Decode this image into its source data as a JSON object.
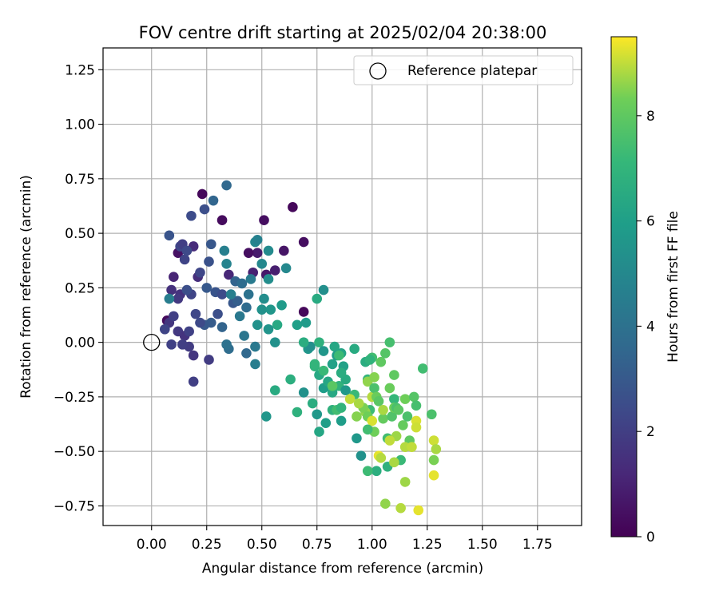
{
  "chart_data": {
    "type": "scatter",
    "title": "FOV centre drift starting at 2025/02/04 20:38:00",
    "xlabel": "Angular distance from reference (arcmin)",
    "ylabel": "Rotation from reference (arcmin)",
    "xlim": [
      -0.22,
      1.95
    ],
    "ylim": [
      -0.84,
      1.35
    ],
    "x_ticks": [
      0.0,
      0.25,
      0.5,
      0.75,
      1.0,
      1.25,
      1.5,
      1.75
    ],
    "x_tick_labels": [
      "0.00",
      "0.25",
      "0.50",
      "0.75",
      "1.00",
      "1.25",
      "1.50",
      "1.75"
    ],
    "y_ticks": [
      -0.75,
      -0.5,
      -0.25,
      0.0,
      0.25,
      0.5,
      0.75,
      1.0,
      1.25
    ],
    "y_tick_labels": [
      "−0.75",
      "−0.50",
      "−0.25",
      "0.00",
      "0.25",
      "0.50",
      "0.75",
      "1.00",
      "1.25"
    ],
    "grid": true,
    "legend": {
      "placement": "top-right",
      "entries": [
        "Reference platepar"
      ]
    },
    "reference_point": {
      "x": 0.0,
      "y": 0.0
    },
    "colorbar": {
      "label": "Hours from first FF file",
      "colormap": "viridis",
      "range": [
        0,
        9.5
      ],
      "ticks": [
        0,
        2,
        4,
        6,
        8
      ],
      "tick_labels": [
        "0",
        "2",
        "4",
        "6",
        "8"
      ]
    },
    "points": [
      [
        0.07,
        0.1,
        0.3
      ],
      [
        0.12,
        0.41,
        0.5
      ],
      [
        0.23,
        0.68,
        0.2
      ],
      [
        0.32,
        0.56,
        0.3
      ],
      [
        0.51,
        0.56,
        0.4
      ],
      [
        0.64,
        0.62,
        0.2
      ],
      [
        0.69,
        0.46,
        0.4
      ],
      [
        0.6,
        0.42,
        0.6
      ],
      [
        0.48,
        0.41,
        0.8
      ],
      [
        0.44,
        0.41,
        0.4
      ],
      [
        0.56,
        0.33,
        0.9
      ],
      [
        0.52,
        0.31,
        0.7
      ],
      [
        0.46,
        0.32,
        1.0
      ],
      [
        0.35,
        0.31,
        1.2
      ],
      [
        0.19,
        0.44,
        1.3
      ],
      [
        0.21,
        0.3,
        1.4
      ],
      [
        0.69,
        0.14,
        0.2
      ],
      [
        0.09,
        0.24,
        1.5
      ],
      [
        0.1,
        0.3,
        1.1
      ],
      [
        0.13,
        0.22,
        1.6
      ],
      [
        0.08,
        0.09,
        1.7
      ],
      [
        0.12,
        0.05,
        1.8
      ],
      [
        0.15,
        0.03,
        1.6
      ],
      [
        0.17,
        -0.02,
        1.9
      ],
      [
        0.14,
        -0.01,
        2.0
      ],
      [
        0.19,
        -0.06,
        1.7
      ],
      [
        0.09,
        -0.01,
        2.1
      ],
      [
        0.19,
        -0.18,
        2.0
      ],
      [
        0.26,
        -0.08,
        1.9
      ],
      [
        0.12,
        0.2,
        1.8
      ],
      [
        0.1,
        0.12,
        2.0
      ],
      [
        0.06,
        0.06,
        2.2
      ],
      [
        0.15,
        0.38,
        2.2
      ],
      [
        0.13,
        0.44,
        2.3
      ],
      [
        0.14,
        0.45,
        2.0
      ],
      [
        0.16,
        0.42,
        2.4
      ],
      [
        0.08,
        0.49,
        2.8
      ],
      [
        0.18,
        0.58,
        2.5
      ],
      [
        0.24,
        0.61,
        2.6
      ],
      [
        0.28,
        0.65,
        3.5
      ],
      [
        0.34,
        0.72,
        3.6
      ],
      [
        0.26,
        0.37,
        2.7
      ],
      [
        0.27,
        0.45,
        2.9
      ],
      [
        0.22,
        0.32,
        2.3
      ],
      [
        0.25,
        0.25,
        3.0
      ],
      [
        0.29,
        0.23,
        2.8
      ],
      [
        0.32,
        0.22,
        2.5
      ],
      [
        0.37,
        0.18,
        2.9
      ],
      [
        0.39,
        0.19,
        3.2
      ],
      [
        0.3,
        0.13,
        2.6
      ],
      [
        0.27,
        0.09,
        3.1
      ],
      [
        0.32,
        0.07,
        3.4
      ],
      [
        0.24,
        0.08,
        3.0
      ],
      [
        0.22,
        0.09,
        2.4
      ],
      [
        0.17,
        0.05,
        2.1
      ],
      [
        0.2,
        0.13,
        2.3
      ],
      [
        0.18,
        0.22,
        2.2
      ],
      [
        0.16,
        0.24,
        2.6
      ],
      [
        0.08,
        0.2,
        4.5
      ],
      [
        0.33,
        0.42,
        4.6
      ],
      [
        0.34,
        0.36,
        4.8
      ],
      [
        0.38,
        0.28,
        3.4
      ],
      [
        0.41,
        0.27,
        3.8
      ],
      [
        0.44,
        0.22,
        4.0
      ],
      [
        0.45,
        0.29,
        4.4
      ],
      [
        0.47,
        0.46,
        4.9
      ],
      [
        0.48,
        0.47,
        4.7
      ],
      [
        0.5,
        0.36,
        5.0
      ],
      [
        0.53,
        0.29,
        5.2
      ],
      [
        0.51,
        0.2,
        5.2
      ],
      [
        0.5,
        0.15,
        5.4
      ],
      [
        0.54,
        0.15,
        5.6
      ],
      [
        0.48,
        0.08,
        5.4
      ],
      [
        0.53,
        0.06,
        5.5
      ],
      [
        0.56,
        0.0,
        5.4
      ],
      [
        0.47,
        -0.02,
        4.3
      ],
      [
        0.43,
        -0.05,
        3.6
      ],
      [
        0.47,
        -0.1,
        4.5
      ],
      [
        0.42,
        0.03,
        4.2
      ],
      [
        0.35,
        -0.03,
        3.8
      ],
      [
        0.34,
        -0.01,
        4.0
      ],
      [
        0.36,
        0.22,
        4.6
      ],
      [
        0.4,
        0.12,
        4.3
      ],
      [
        0.43,
        0.16,
        3.7
      ],
      [
        0.61,
        0.34,
        5.0
      ],
      [
        0.53,
        0.42,
        5.1
      ],
      [
        0.59,
        0.17,
        5.8
      ],
      [
        0.57,
        0.08,
        6.4
      ],
      [
        0.66,
        0.08,
        6.0
      ],
      [
        0.7,
        0.09,
        5.8
      ],
      [
        0.75,
        0.2,
        6.5
      ],
      [
        0.78,
        0.24,
        5.3
      ],
      [
        0.69,
        -0.23,
        5.4
      ],
      [
        0.71,
        -0.03,
        5.6
      ],
      [
        0.72,
        -0.02,
        5.3
      ],
      [
        0.76,
        0.0,
        6.8
      ],
      [
        0.78,
        -0.04,
        5.6
      ],
      [
        0.83,
        -0.02,
        6.3
      ],
      [
        0.84,
        -0.06,
        5.9
      ],
      [
        0.86,
        -0.05,
        6.2
      ],
      [
        0.82,
        -0.1,
        6.1
      ],
      [
        0.74,
        -0.11,
        6.9
      ],
      [
        0.76,
        -0.15,
        6.4
      ],
      [
        0.78,
        -0.21,
        5.9
      ],
      [
        0.8,
        -0.18,
        6.3
      ],
      [
        0.82,
        -0.23,
        6.4
      ],
      [
        0.85,
        -0.2,
        6.9
      ],
      [
        0.88,
        -0.17,
        6.5
      ],
      [
        0.87,
        -0.11,
        6.1
      ],
      [
        0.88,
        -0.22,
        5.7
      ],
      [
        0.73,
        -0.28,
        6.6
      ],
      [
        0.75,
        -0.33,
        5.7
      ],
      [
        0.76,
        -0.41,
        6.3
      ],
      [
        0.79,
        -0.37,
        6.0
      ],
      [
        0.82,
        -0.31,
        6.8
      ],
      [
        0.84,
        -0.31,
        7.4
      ],
      [
        0.86,
        -0.3,
        7.0
      ],
      [
        0.86,
        -0.36,
        5.9
      ],
      [
        0.92,
        -0.03,
        6.5
      ],
      [
        0.92,
        -0.24,
        7.2
      ],
      [
        0.93,
        -0.44,
        5.7
      ],
      [
        0.95,
        -0.52,
        5.4
      ],
      [
        0.97,
        -0.09,
        6.6
      ],
      [
        0.98,
        -0.17,
        7.0
      ],
      [
        0.98,
        -0.18,
        8.6
      ],
      [
        0.99,
        -0.31,
        7.3
      ],
      [
        1.0,
        -0.07,
        7.4
      ],
      [
        1.0,
        -0.25,
        8.9
      ],
      [
        1.01,
        -0.21,
        7.6
      ],
      [
        1.02,
        -0.25,
        8.2
      ],
      [
        1.04,
        -0.09,
        8.0
      ],
      [
        1.06,
        -0.05,
        7.8
      ],
      [
        1.08,
        0.0,
        7.5
      ],
      [
        1.03,
        -0.27,
        7.9
      ],
      [
        1.05,
        -0.35,
        8.1
      ],
      [
        1.07,
        -0.44,
        7.4
      ],
      [
        1.09,
        -0.34,
        7.7
      ],
      [
        1.1,
        -0.26,
        7.1
      ],
      [
        1.1,
        -0.3,
        8.3
      ],
      [
        1.11,
        -0.3,
        7.6
      ],
      [
        1.12,
        -0.31,
        7.9
      ],
      [
        1.15,
        -0.26,
        8.3
      ],
      [
        1.14,
        -0.38,
        8.1
      ],
      [
        1.16,
        -0.34,
        7.6
      ],
      [
        1.17,
        -0.45,
        8.0
      ],
      [
        1.19,
        -0.25,
        7.8
      ],
      [
        1.2,
        -0.29,
        7.5
      ],
      [
        1.23,
        -0.12,
        7.4
      ],
      [
        1.27,
        -0.33,
        7.6
      ],
      [
        1.13,
        -0.54,
        7.2
      ],
      [
        1.07,
        -0.57,
        6.8
      ],
      [
        1.02,
        -0.59,
        6.7
      ],
      [
        0.98,
        -0.59,
        7.3
      ],
      [
        1.11,
        -0.43,
        8.7
      ],
      [
        1.15,
        -0.48,
        8.9
      ],
      [
        1.18,
        -0.48,
        9.0
      ],
      [
        1.2,
        -0.36,
        9.2
      ],
      [
        1.2,
        -0.39,
        9.1
      ],
      [
        1.28,
        -0.45,
        9.1
      ],
      [
        1.29,
        -0.49,
        8.8
      ],
      [
        1.28,
        -0.54,
        8.4
      ],
      [
        1.28,
        -0.61,
        9.3
      ],
      [
        1.15,
        -0.64,
        8.7
      ],
      [
        1.1,
        -0.55,
        8.8
      ],
      [
        1.08,
        -0.45,
        9.0
      ],
      [
        1.03,
        -0.52,
        9.3
      ],
      [
        1.04,
        -0.53,
        8.9
      ],
      [
        1.06,
        -0.74,
        8.6
      ],
      [
        1.13,
        -0.76,
        8.9
      ],
      [
        1.21,
        -0.77,
        9.3
      ],
      [
        1.01,
        -0.41,
        8.3
      ],
      [
        0.97,
        -0.32,
        8.6
      ],
      [
        0.96,
        -0.3,
        8.4
      ],
      [
        0.94,
        -0.28,
        8.8
      ],
      [
        0.9,
        -0.26,
        9.0
      ],
      [
        0.93,
        -0.34,
        8.5
      ],
      [
        0.98,
        -0.34,
        8.3
      ],
      [
        1.0,
        -0.36,
        9.2
      ],
      [
        1.05,
        -0.31,
        8.8
      ],
      [
        1.1,
        -0.15,
        8.0
      ],
      [
        1.01,
        -0.16,
        8.5
      ],
      [
        1.08,
        -0.21,
        8.2
      ],
      [
        0.82,
        -0.2,
        7.9
      ],
      [
        0.78,
        -0.13,
        7.2
      ],
      [
        0.74,
        -0.1,
        7.0
      ],
      [
        0.69,
        0.0,
        6.6
      ],
      [
        0.66,
        -0.32,
        6.8
      ],
      [
        0.63,
        -0.17,
        6.7
      ],
      [
        0.56,
        -0.22,
        6.5
      ],
      [
        0.52,
        -0.34,
        5.6
      ],
      [
        0.98,
        -0.4,
        7.4
      ],
      [
        0.99,
        -0.08,
        6.9
      ],
      [
        0.85,
        -0.06,
        7.3
      ],
      [
        0.86,
        -0.14,
        6.6
      ]
    ]
  }
}
